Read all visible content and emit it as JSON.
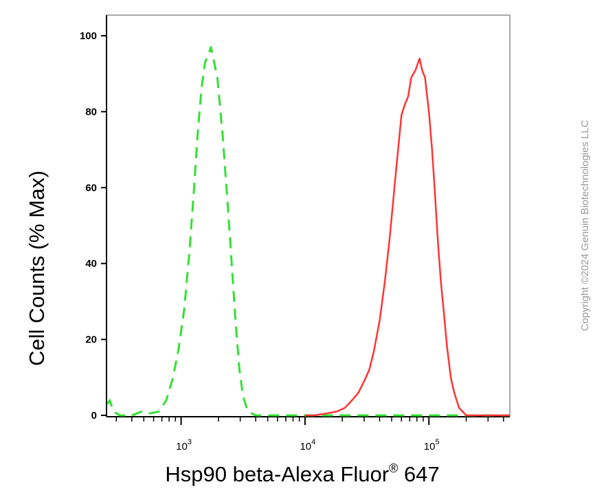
{
  "chart_data": {
    "type": "line",
    "xlabel": "Hsp90 beta-Alexa Fluor",
    "xlabel_sup": "®",
    "xlabel_suffix": " 647",
    "ylabel": "Cell Counts (% Max)",
    "x_scale": "log",
    "xlim": [
      250,
      450000
    ],
    "ylim": [
      0,
      105
    ],
    "y_ticks": [
      0,
      20,
      40,
      60,
      80,
      100
    ],
    "x_major_ticks": [
      1000,
      10000,
      100000
    ],
    "x_tick_labels": [
      {
        "base": "10",
        "exp": "3"
      },
      {
        "base": "10",
        "exp": "4"
      },
      {
        "base": "10",
        "exp": "5"
      }
    ],
    "grid": false,
    "legend": "none",
    "series": [
      {
        "color": "#33e033",
        "dash": "dashed",
        "points": [
          [
            255,
            3
          ],
          [
            265,
            4
          ],
          [
            285,
            1
          ],
          [
            320,
            0
          ],
          [
            400,
            0
          ],
          [
            480,
            1
          ],
          [
            560,
            0.5
          ],
          [
            660,
            1
          ],
          [
            760,
            4
          ],
          [
            860,
            10
          ],
          [
            960,
            18
          ],
          [
            1060,
            28
          ],
          [
            1160,
            42
          ],
          [
            1260,
            58
          ],
          [
            1360,
            74
          ],
          [
            1460,
            86
          ],
          [
            1560,
            93
          ],
          [
            1660,
            95
          ],
          [
            1740,
            97
          ],
          [
            1820,
            94
          ],
          [
            1960,
            89
          ],
          [
            2160,
            74
          ],
          [
            2360,
            57
          ],
          [
            2560,
            40
          ],
          [
            2760,
            24
          ],
          [
            2960,
            12
          ],
          [
            3160,
            5
          ],
          [
            3460,
            1
          ],
          [
            4000,
            0
          ],
          [
            10000,
            0
          ],
          [
            30000,
            0
          ],
          [
            100000,
            0
          ],
          [
            200000,
            0
          ],
          [
            450000,
            0
          ]
        ]
      },
      {
        "color": "#ff3333",
        "dash": "solid",
        "points": [
          [
            10000,
            0
          ],
          [
            12000,
            0
          ],
          [
            15000,
            0.5
          ],
          [
            18000,
            1
          ],
          [
            21000,
            2
          ],
          [
            24000,
            4
          ],
          [
            27000,
            6
          ],
          [
            30000,
            9
          ],
          [
            33000,
            12
          ],
          [
            36000,
            17
          ],
          [
            40000,
            25
          ],
          [
            44000,
            35
          ],
          [
            48000,
            46
          ],
          [
            52000,
            58
          ],
          [
            56000,
            69
          ],
          [
            60000,
            79
          ],
          [
            64000,
            82
          ],
          [
            68000,
            84
          ],
          [
            72000,
            89
          ],
          [
            78000,
            91
          ],
          [
            84000,
            94
          ],
          [
            88000,
            91
          ],
          [
            93000,
            89
          ],
          [
            100000,
            80
          ],
          [
            106000,
            70
          ],
          [
            112000,
            58
          ],
          [
            118000,
            46
          ],
          [
            125000,
            35
          ],
          [
            132000,
            27
          ],
          [
            140000,
            18
          ],
          [
            150000,
            10
          ],
          [
            160000,
            6
          ],
          [
            175000,
            2
          ],
          [
            200000,
            0
          ],
          [
            450000,
            0
          ]
        ]
      }
    ]
  },
  "watermark": "Copyright ©2024 Genuin Biotechnologies LLC"
}
